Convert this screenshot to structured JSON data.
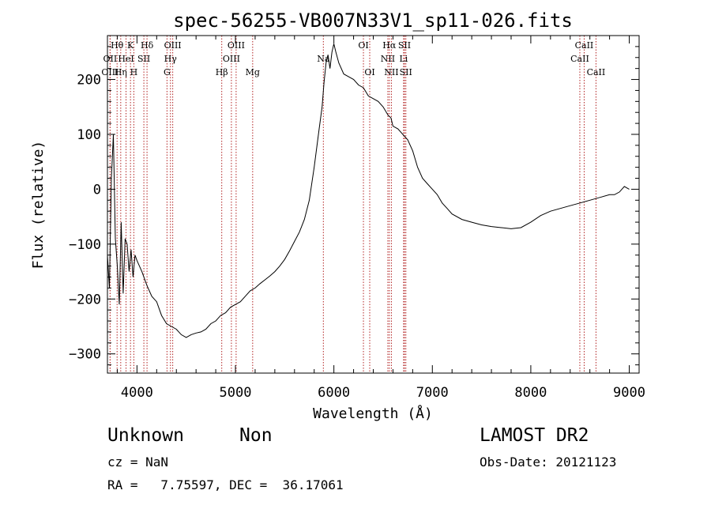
{
  "chart_data": {
    "type": "line",
    "title": "spec-56255-VB007N33V1_sp11-026.fits",
    "xlabel": "Wavelength (Å)",
    "ylabel": "Flux (relative)",
    "xlim": [
      3700,
      9100
    ],
    "ylim": [
      -335,
      280
    ],
    "xticks": [
      4000,
      5000,
      6000,
      7000,
      8000,
      9000
    ],
    "yticks": [
      -300,
      -200,
      -100,
      0,
      100,
      200
    ],
    "grid": false,
    "series": [
      {
        "x": [
          3700,
          3720,
          3740,
          3760,
          3780,
          3800,
          3820,
          3840,
          3860,
          3880,
          3900,
          3920,
          3940,
          3960,
          3980,
          4000,
          4050,
          4100,
          4150,
          4200,
          4250,
          4300,
          4350,
          4400,
          4450,
          4500,
          4550,
          4600,
          4650,
          4700,
          4750,
          4800,
          4850,
          4900,
          4950,
          5000,
          5050,
          5100,
          5150,
          5200,
          5250,
          5300,
          5350,
          5400,
          5450,
          5500,
          5550,
          5600,
          5650,
          5700,
          5750,
          5800,
          5850,
          5880,
          5900,
          5920,
          5940,
          5960,
          5980,
          6000,
          6020,
          6050,
          6100,
          6150,
          6200,
          6250,
          6300,
          6350,
          6400,
          6450,
          6500,
          6550,
          6580,
          6600,
          6650,
          6700,
          6750,
          6800,
          6850,
          6900,
          6950,
          7000,
          7050,
          7100,
          7150,
          7200,
          7300,
          7400,
          7500,
          7600,
          7700,
          7800,
          7900,
          8000,
          8100,
          8200,
          8300,
          8400,
          8500,
          8600,
          8700,
          8800,
          8850,
          8900,
          8950,
          9000
        ],
        "y": [
          -120,
          -180,
          20,
          100,
          -90,
          -140,
          -210,
          -60,
          -190,
          -90,
          -100,
          -150,
          -110,
          -160,
          -120,
          -130,
          -150,
          -175,
          -195,
          -205,
          -230,
          -245,
          -250,
          -255,
          -265,
          -270,
          -265,
          -262,
          -260,
          -255,
          -245,
          -240,
          -230,
          -225,
          -215,
          -210,
          -205,
          -195,
          -185,
          -180,
          -172,
          -165,
          -158,
          -150,
          -140,
          -128,
          -112,
          -95,
          -78,
          -55,
          -20,
          40,
          110,
          150,
          195,
          230,
          245,
          220,
          250,
          265,
          250,
          230,
          210,
          205,
          200,
          190,
          185,
          170,
          165,
          160,
          150,
          135,
          130,
          115,
          110,
          100,
          90,
          70,
          40,
          20,
          10,
          0,
          -10,
          -25,
          -35,
          -45,
          -55,
          -60,
          -65,
          -68,
          -70,
          -72,
          -70,
          -60,
          -48,
          -40,
          -35,
          -30,
          -25,
          -20,
          -15,
          -10,
          -10,
          -5,
          5,
          0
        ]
      }
    ],
    "line_labels": [
      {
        "text": "Hθ",
        "x": 3798,
        "row": 0
      },
      {
        "text": "K",
        "x": 3934,
        "row": 0
      },
      {
        "text": "Hδ",
        "x": 4102,
        "row": 0
      },
      {
        "text": "OIII",
        "x": 4363,
        "row": 0
      },
      {
        "text": "OIII",
        "x": 5007,
        "row": 0
      },
      {
        "text": "OI",
        "x": 6300,
        "row": 0
      },
      {
        "text": "Hα",
        "x": 6563,
        "row": 0
      },
      {
        "text": "SII",
        "x": 6717,
        "row": 0
      },
      {
        "text": "CaII",
        "x": 8542,
        "row": 0
      },
      {
        "text": "OII",
        "x": 3727,
        "row": 1
      },
      {
        "text": "HeI",
        "x": 3889,
        "row": 1
      },
      {
        "text": "SII",
        "x": 4070,
        "row": 1
      },
      {
        "text": "Hγ",
        "x": 4340,
        "row": 1
      },
      {
        "text": "OIII",
        "x": 4959,
        "row": 1
      },
      {
        "text": "Na",
        "x": 5893,
        "row": 1
      },
      {
        "text": "NII",
        "x": 6548,
        "row": 1
      },
      {
        "text": "Li",
        "x": 6708,
        "row": 1
      },
      {
        "text": "CaII",
        "x": 8498,
        "row": 1
      },
      {
        "text": "OIII",
        "x": 3727,
        "row": 2
      },
      {
        "text": "Hη",
        "x": 3835,
        "row": 2
      },
      {
        "text": "H",
        "x": 3968,
        "row": 2
      },
      {
        "text": "G",
        "x": 4305,
        "row": 2
      },
      {
        "text": "Hβ",
        "x": 4861,
        "row": 2
      },
      {
        "text": "Mg",
        "x": 5175,
        "row": 2
      },
      {
        "text": "OI",
        "x": 6364,
        "row": 2
      },
      {
        "text": "NII",
        "x": 6584,
        "row": 2
      },
      {
        "text": "SII",
        "x": 6731,
        "row": 2
      },
      {
        "text": "CaII",
        "x": 8662,
        "row": 2
      }
    ]
  },
  "footer": {
    "class_text": "Unknown",
    "subclass_text": "Non",
    "survey": "LAMOST DR2",
    "cz": "cz = NaN",
    "obs_date": "Obs-Date: 20121123",
    "radec": "RA =   7.75597, DEC =  36.17061"
  }
}
